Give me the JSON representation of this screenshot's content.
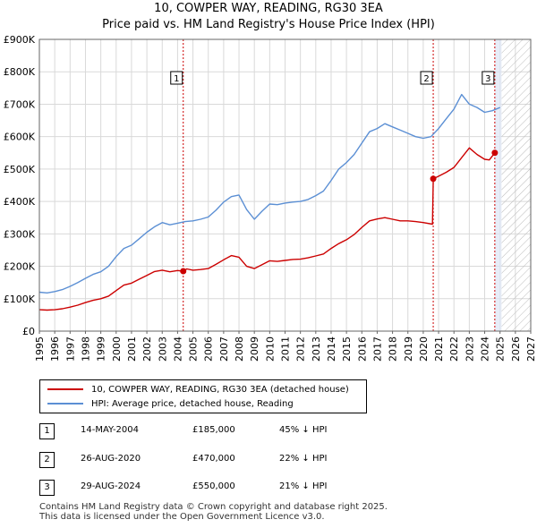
{
  "colors": {
    "price_paid": "#cc0000",
    "hpi": "#5b8fd4",
    "marker_line": "#cc0000",
    "grid": "#d9d9d9",
    "shade": "#dde6f5"
  },
  "chart_data": {
    "type": "line",
    "title": "10, COWPER WAY, READING, RG30 3EA",
    "subtitle": "Price paid vs. HM Land Registry's House Price Index (HPI)",
    "xlabel": "",
    "ylabel": "",
    "xlim": [
      1995,
      2027
    ],
    "ylim": [
      0,
      900000
    ],
    "x_ticks": [
      "1995",
      "1996",
      "1997",
      "1998",
      "1999",
      "2000",
      "2001",
      "2002",
      "2003",
      "2004",
      "2005",
      "2006",
      "2007",
      "2008",
      "2009",
      "2010",
      "2011",
      "2012",
      "2013",
      "2014",
      "2015",
      "2016",
      "2017",
      "2018",
      "2019",
      "2020",
      "2021",
      "2022",
      "2023",
      "2024",
      "2025",
      "2026",
      "2027"
    ],
    "y_ticks": [
      {
        "value": 0,
        "label": "£0"
      },
      {
        "value": 100000,
        "label": "£100K"
      },
      {
        "value": 200000,
        "label": "£200K"
      },
      {
        "value": 300000,
        "label": "£300K"
      },
      {
        "value": 400000,
        "label": "£400K"
      },
      {
        "value": 500000,
        "label": "£500K"
      },
      {
        "value": 600000,
        "label": "£600K"
      },
      {
        "value": 700000,
        "label": "£700K"
      },
      {
        "value": 800000,
        "label": "£800K"
      },
      {
        "value": 900000,
        "label": "£900K"
      }
    ],
    "projection_start": 2025.1,
    "series": [
      {
        "name": "10, COWPER WAY, READING, RG30 3EA (detached house)",
        "x": [
          1995.0,
          1995.5,
          1996.0,
          1996.5,
          1997.0,
          1997.5,
          1998.0,
          1998.5,
          1999.0,
          1999.5,
          2000.0,
          2000.5,
          2001.0,
          2001.5,
          2002.0,
          2002.5,
          2003.0,
          2003.5,
          2004.0,
          2004.37,
          2004.6,
          2005.0,
          2005.5,
          2006.0,
          2006.5,
          2007.0,
          2007.5,
          2008.0,
          2008.5,
          2009.0,
          2009.5,
          2010.0,
          2010.5,
          2011.0,
          2011.5,
          2012.0,
          2012.5,
          2013.0,
          2013.5,
          2014.0,
          2014.5,
          2015.0,
          2015.5,
          2016.0,
          2016.5,
          2017.0,
          2017.5,
          2018.0,
          2018.5,
          2019.0,
          2019.5,
          2020.0,
          2020.6,
          2020.65,
          2021.0,
          2021.5,
          2022.0,
          2022.5,
          2023.0,
          2023.5,
          2024.0,
          2024.3,
          2024.66
        ],
        "values": [
          66000,
          65000,
          66000,
          69000,
          74000,
          80000,
          88000,
          95000,
          100000,
          108000,
          125000,
          142000,
          148000,
          160000,
          172000,
          184000,
          188000,
          183000,
          187000,
          185000,
          192000,
          188000,
          190000,
          193000,
          206000,
          220000,
          233000,
          228000,
          200000,
          193000,
          205000,
          217000,
          215000,
          218000,
          221000,
          222000,
          226000,
          232000,
          238000,
          255000,
          270000,
          282000,
          298000,
          320000,
          340000,
          346000,
          350000,
          345000,
          340000,
          340000,
          338000,
          335000,
          330000,
          470000,
          478000,
          490000,
          505000,
          535000,
          565000,
          545000,
          530000,
          528000,
          550000
        ]
      },
      {
        "name": "HPI: Average price, detached house, Reading",
        "x": [
          1995.0,
          1995.5,
          1996.0,
          1996.5,
          1997.0,
          1997.5,
          1998.0,
          1998.5,
          1999.0,
          1999.5,
          2000.0,
          2000.5,
          2001.0,
          2001.5,
          2002.0,
          2002.5,
          2003.0,
          2003.5,
          2004.0,
          2004.5,
          2005.0,
          2005.5,
          2006.0,
          2006.5,
          2007.0,
          2007.5,
          2008.0,
          2008.5,
          2009.0,
          2009.5,
          2010.0,
          2010.5,
          2011.0,
          2011.5,
          2012.0,
          2012.5,
          2013.0,
          2013.5,
          2014.0,
          2014.5,
          2015.0,
          2015.5,
          2016.0,
          2016.5,
          2017.0,
          2017.5,
          2018.0,
          2018.5,
          2019.0,
          2019.5,
          2020.0,
          2020.5,
          2021.0,
          2021.5,
          2022.0,
          2022.5,
          2023.0,
          2023.5,
          2024.0,
          2024.5,
          2025.0
        ],
        "values": [
          120000,
          118000,
          122000,
          128000,
          138000,
          150000,
          163000,
          175000,
          183000,
          200000,
          230000,
          255000,
          265000,
          285000,
          305000,
          322000,
          335000,
          328000,
          333000,
          338000,
          340000,
          345000,
          352000,
          373000,
          398000,
          415000,
          420000,
          375000,
          345000,
          370000,
          392000,
          390000,
          395000,
          398000,
          400000,
          406000,
          418000,
          432000,
          465000,
          500000,
          520000,
          545000,
          580000,
          615000,
          625000,
          640000,
          630000,
          620000,
          610000,
          600000,
          595000,
          600000,
          625000,
          655000,
          685000,
          730000,
          700000,
          690000,
          675000,
          680000,
          690000
        ]
      }
    ],
    "sales": [
      {
        "label": "1",
        "x": 2004.37,
        "value": 185000
      },
      {
        "label": "2",
        "x": 2020.65,
        "value": 470000
      },
      {
        "label": "3",
        "x": 2024.66,
        "value": 550000
      }
    ]
  },
  "legend": {
    "price_label": "10, COWPER WAY, READING, RG30 3EA (detached house)",
    "hpi_label": "HPI: Average price, detached house, Reading"
  },
  "sales_table": [
    {
      "num": "1",
      "date": "14-MAY-2004",
      "price": "£185,000",
      "diff": "45% ↓ HPI"
    },
    {
      "num": "2",
      "date": "26-AUG-2020",
      "price": "£470,000",
      "diff": "22% ↓ HPI"
    },
    {
      "num": "3",
      "date": "29-AUG-2024",
      "price": "£550,000",
      "diff": "21% ↓ HPI"
    }
  ],
  "footer": {
    "line1": "Contains HM Land Registry data © Crown copyright and database right 2025.",
    "line2": "This data is licensed under the Open Government Licence v3.0."
  }
}
